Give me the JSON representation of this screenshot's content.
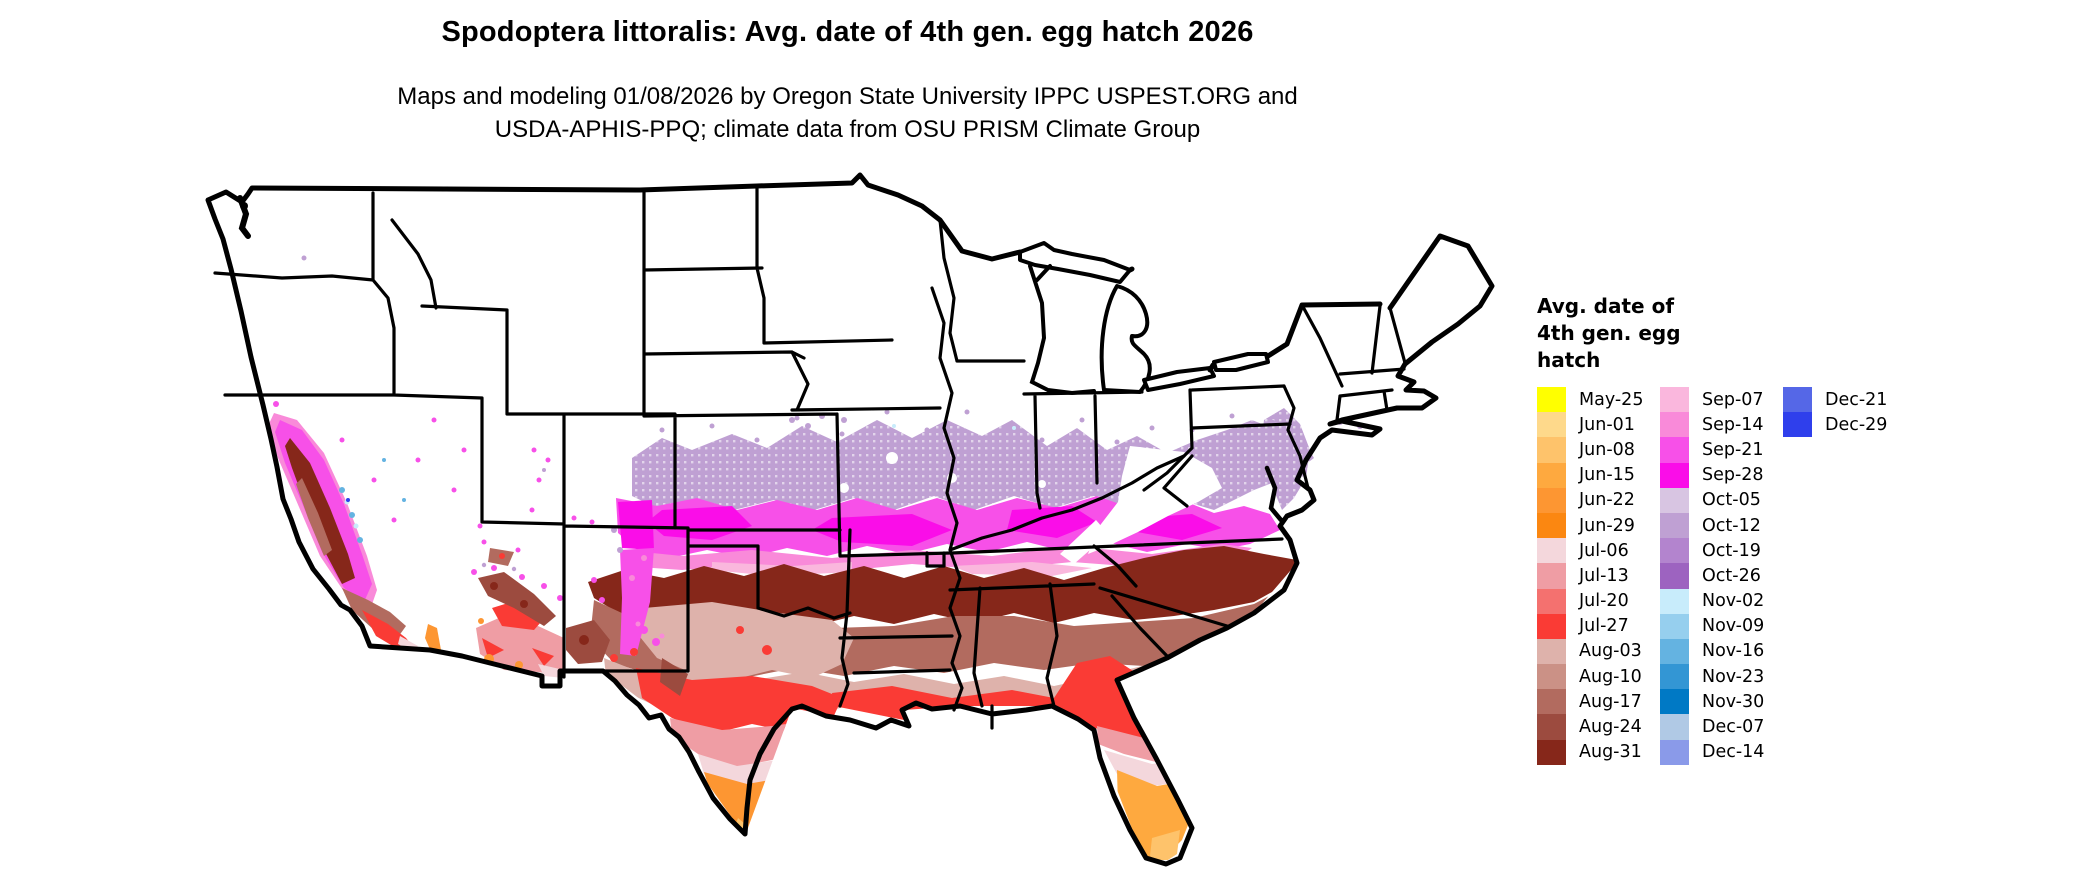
{
  "header": {
    "title": "Spodoptera littoralis: Avg. date of 4th gen. egg hatch 2026",
    "subtitle_lines": [
      "Maps and modeling 01/08/2026 by Oregon State University IPPC USPEST.ORG and",
      "USDA-APHIS-PPQ; climate data from OSU PRISM Climate Group"
    ]
  },
  "legend": {
    "title_lines": [
      "Avg. date of",
      "4th gen. egg",
      "hatch"
    ],
    "columns": [
      [
        {
          "label": "May-25",
          "color": "#FFFF00"
        },
        {
          "label": "Jun-01",
          "color": "#FED98B"
        },
        {
          "label": "Jun-08",
          "color": "#FEC36B"
        },
        {
          "label": "Jun-15",
          "color": "#FEA93F"
        },
        {
          "label": "Jun-22",
          "color": "#FD9632"
        },
        {
          "label": "Jun-29",
          "color": "#FB8711"
        },
        {
          "label": "Jul-06",
          "color": "#F4D7DC"
        },
        {
          "label": "Jul-13",
          "color": "#EF9DA4"
        },
        {
          "label": "Jul-20",
          "color": "#F4716F"
        },
        {
          "label": "Jul-27",
          "color": "#FA3B35"
        },
        {
          "label": "Aug-03",
          "color": "#DEB2AB"
        },
        {
          "label": "Aug-10",
          "color": "#CB9186"
        },
        {
          "label": "Aug-17",
          "color": "#B26B5F"
        },
        {
          "label": "Aug-24",
          "color": "#9C4B3F"
        },
        {
          "label": "Aug-31",
          "color": "#86271A"
        }
      ],
      [
        {
          "label": "Sep-07",
          "color": "#FAB7DD"
        },
        {
          "label": "Sep-14",
          "color": "#F98AD9"
        },
        {
          "label": "Sep-21",
          "color": "#F750E8"
        },
        {
          "label": "Sep-28",
          "color": "#FA0DE8"
        },
        {
          "label": "Oct-05",
          "color": "#D8C5E2"
        },
        {
          "label": "Oct-12",
          "color": "#BFA0D3"
        },
        {
          "label": "Oct-19",
          "color": "#B384CE"
        },
        {
          "label": "Oct-26",
          "color": "#9D63C0"
        },
        {
          "label": "Nov-02",
          "color": "#C8ECFB"
        },
        {
          "label": "Nov-09",
          "color": "#96CFEE"
        },
        {
          "label": "Nov-16",
          "color": "#64B3E1"
        },
        {
          "label": "Nov-23",
          "color": "#3396D4"
        },
        {
          "label": "Nov-30",
          "color": "#0079C5"
        },
        {
          "label": "Dec-07",
          "color": "#B0C9E5"
        },
        {
          "label": "Dec-14",
          "color": "#8A9AE9"
        }
      ],
      [
        {
          "label": "Dec-21",
          "color": "#5567E7"
        },
        {
          "label": "Dec-29",
          "color": "#2F3FEC"
        }
      ]
    ]
  },
  "map": {
    "region": "Contiguous United States",
    "no_data_color": "#FFFFFF",
    "border_color": "#000000"
  }
}
